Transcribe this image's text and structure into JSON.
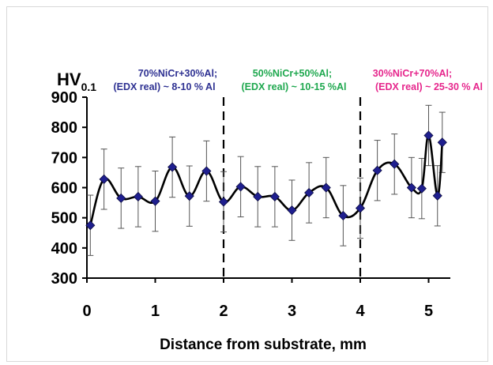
{
  "chart_data": {
    "type": "line",
    "xlabel": "Distance from substrate, mm",
    "ylabel": "HV",
    "ylabel_sub": "0.1",
    "xlim": [
      -0.05,
      5.3
    ],
    "ylim": [
      300,
      900
    ],
    "xticks": [
      "0",
      "1",
      "2",
      "3",
      "4",
      "5"
    ],
    "yticks": [
      "300",
      "400",
      "500",
      "600",
      "700",
      "800",
      "900"
    ],
    "grid": false,
    "legend": "none",
    "dividers": [
      2,
      4
    ],
    "series": [
      {
        "color": "#1f1f8f",
        "x": [
          0.05,
          0.25,
          0.5,
          0.75,
          1.0,
          1.25,
          1.5,
          1.75,
          2.0,
          2.25,
          2.5,
          2.75,
          3.0,
          3.25,
          3.5,
          3.75,
          4.0,
          4.25,
          4.5,
          4.75,
          4.9,
          5.0,
          5.13,
          5.2
        ],
        "values": [
          475,
          628,
          565,
          570,
          555,
          668,
          572,
          655,
          553,
          603,
          570,
          570,
          525,
          583,
          600,
          507,
          532,
          657,
          678,
          600,
          597,
          773,
          573,
          750
        ],
        "errors": [
          100,
          100,
          100,
          100,
          100,
          100,
          100,
          100,
          100,
          100,
          100,
          100,
          100,
          100,
          100,
          100,
          100,
          100,
          100,
          100,
          100,
          100,
          100,
          100
        ]
      }
    ],
    "annotations": [
      {
        "line1": "70%NiCr+30%Al;",
        "line2": "(EDX real) ~ 8-10 % Al",
        "color": "#2e3192"
      },
      {
        "line1": "50%NiCr+50%Al;",
        "line2": "(EDX real) ~ 10-15 %Al",
        "color": "#1fa84f"
      },
      {
        "line1": "30%NiCr+70%Al;",
        "line2": "(EDX real) ~ 25-30 % Al",
        "color": "#e6268c"
      }
    ],
    "marker_color": "#1f1f8f",
    "line_color": "#000000"
  }
}
